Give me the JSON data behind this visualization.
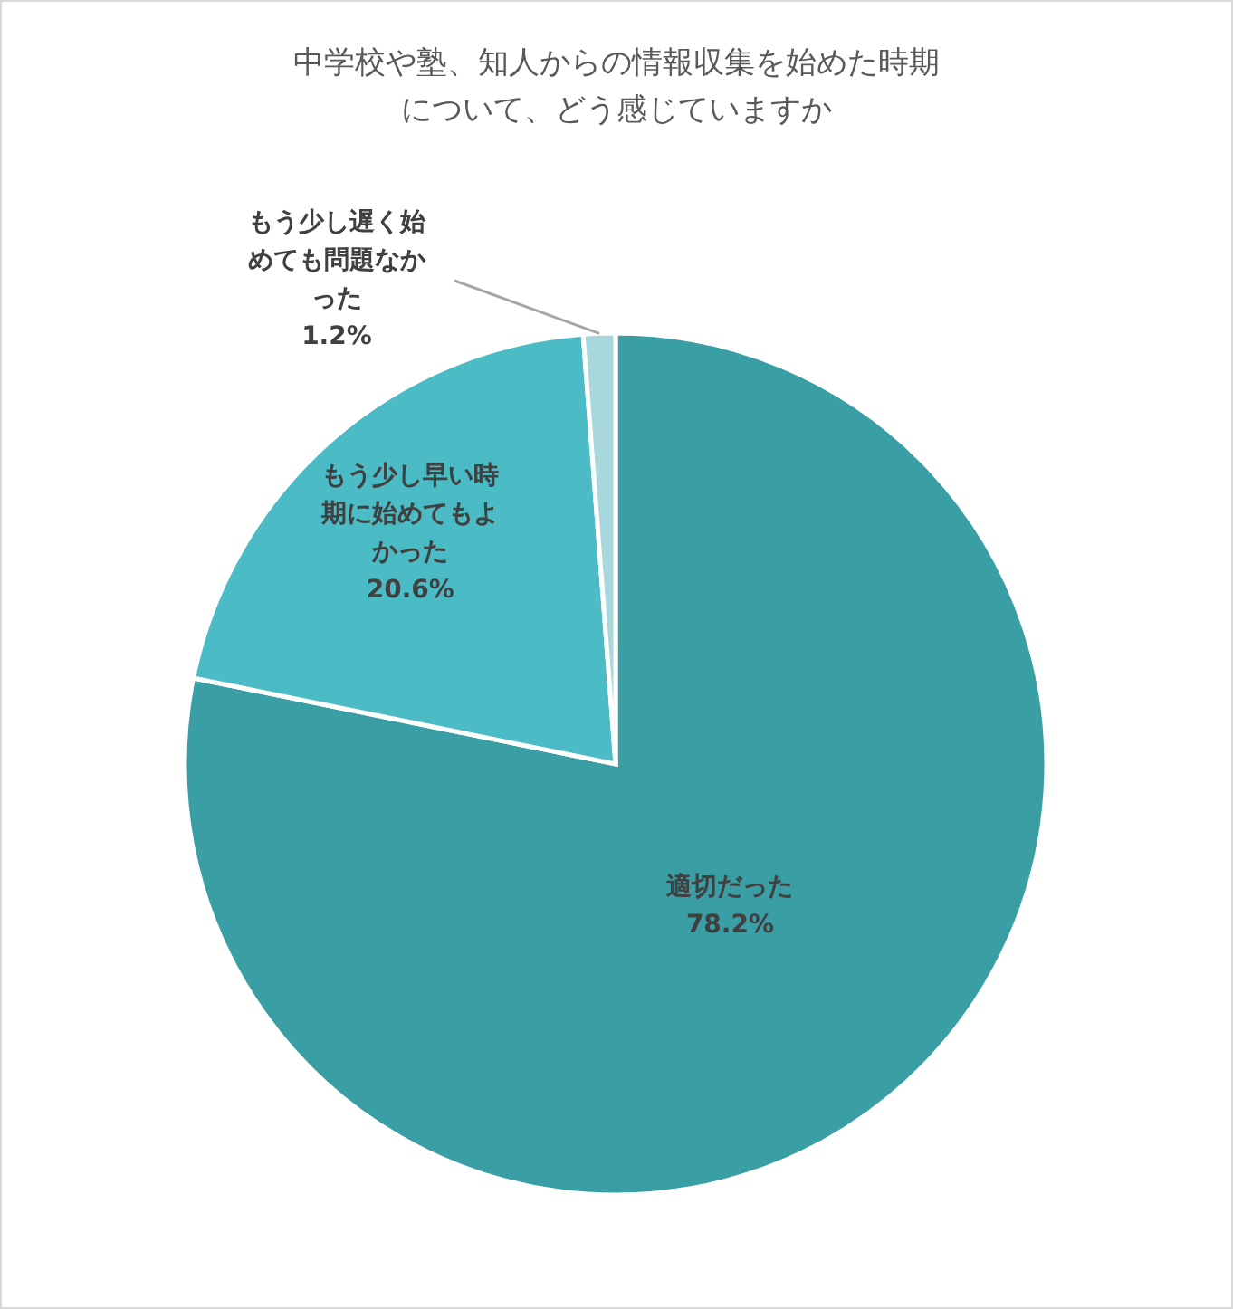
{
  "chart_data": {
    "type": "pie",
    "title": "中学校や塾、知人からの情報収集を始めた時期について、どう感じていますか",
    "categories": [
      "適切だった",
      "もう少し早い時期に始めてもよかった",
      "もう少し遅く始めても問題なかった"
    ],
    "values": [
      78.2,
      20.6,
      1.2
    ],
    "colors": [
      "#3a9ea5",
      "#4bbbc6",
      "#a8d8dc"
    ],
    "value_labels": [
      "78.2%",
      "20.6%",
      "1.2%"
    ]
  }
}
